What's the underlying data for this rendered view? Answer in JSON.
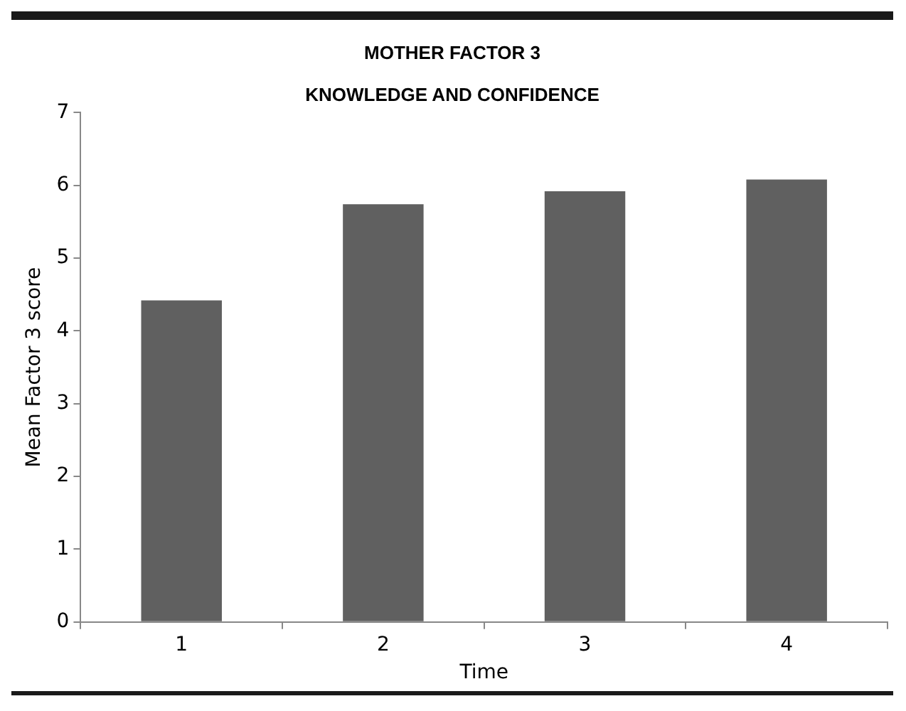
{
  "chart_data": {
    "type": "bar",
    "title": "MOTHER FACTOR 3",
    "subtitle": "KNOWLEDGE AND CONFIDENCE",
    "xlabel": "Time",
    "ylabel": "Mean Factor 3 score",
    "categories": [
      "1",
      "2",
      "3",
      "4"
    ],
    "values": [
      4.42,
      5.74,
      5.92,
      6.08
    ],
    "color": "#606060",
    "ylim": [
      0,
      7
    ],
    "yticks": [
      0,
      1,
      2,
      3,
      4,
      5,
      6,
      7
    ],
    "grid": false,
    "legend": false
  }
}
